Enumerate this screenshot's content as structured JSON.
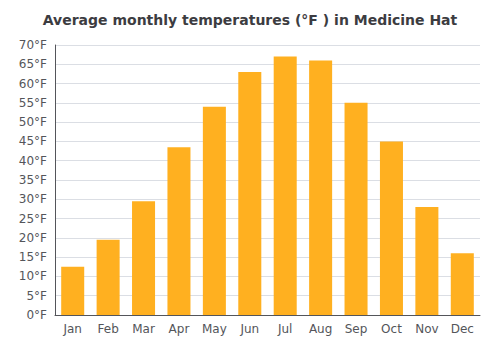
{
  "chart_data": {
    "type": "bar",
    "title": "Average monthly temperatures (°F ) in Medicine Hat",
    "categories": [
      "Jan",
      "Feb",
      "Mar",
      "Apr",
      "May",
      "Jun",
      "Jul",
      "Aug",
      "Sep",
      "Oct",
      "Nov",
      "Dec"
    ],
    "values": [
      12.5,
      19.5,
      29.5,
      43.5,
      54.0,
      63.0,
      67.0,
      66.0,
      55.0,
      45.0,
      28.0,
      16.0
    ],
    "color": "#FFB020",
    "ylim": [
      0,
      70
    ],
    "yticks": [
      {
        "value": 0,
        "label": "0°F"
      },
      {
        "value": 5,
        "label": "5°F"
      },
      {
        "value": 10,
        "label": "10°F"
      },
      {
        "value": 15,
        "label": "15°F"
      },
      {
        "value": 20,
        "label": "20°F"
      },
      {
        "value": 25,
        "label": "25°F"
      },
      {
        "value": 30,
        "label": "30°F"
      },
      {
        "value": 35,
        "label": "35°F"
      },
      {
        "value": 40,
        "label": "40°F"
      },
      {
        "value": 45,
        "label": "45°F"
      },
      {
        "value": 50,
        "label": "50°F"
      },
      {
        "value": 55,
        "label": "55°F"
      },
      {
        "value": 60,
        "label": "60°F"
      },
      {
        "value": 65,
        "label": "65°F"
      },
      {
        "value": 70,
        "label": "70°F"
      }
    ],
    "grid": true
  }
}
